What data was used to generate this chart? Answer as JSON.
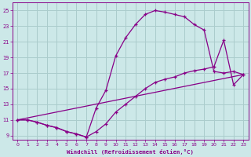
{
  "bg_color": "#cce8e8",
  "grid_color": "#aacccc",
  "line_color": "#880088",
  "xlabel": "Windchill (Refroidissement éolien,°C)",
  "xlim": [
    -0.5,
    23.5
  ],
  "ylim": [
    8.5,
    26.0
  ],
  "xticks": [
    0,
    1,
    2,
    3,
    4,
    5,
    6,
    7,
    8,
    9,
    10,
    11,
    12,
    13,
    14,
    15,
    16,
    17,
    18,
    19,
    20,
    21,
    22,
    23
  ],
  "yticks": [
    9,
    11,
    13,
    15,
    17,
    19,
    21,
    23,
    25
  ],
  "line1_x": [
    0,
    1,
    2,
    3,
    4,
    5,
    6,
    7,
    8,
    9,
    10,
    11,
    12,
    13,
    14,
    15,
    16,
    17,
    18,
    19,
    20,
    21,
    22,
    23
  ],
  "line1_y": [
    11.0,
    11.0,
    10.7,
    10.3,
    10.0,
    9.5,
    9.2,
    8.8,
    12.5,
    14.8,
    19.2,
    21.5,
    23.2,
    24.5,
    25.0,
    24.8,
    24.5,
    24.2,
    23.2,
    22.5,
    17.2,
    17.0,
    17.2,
    16.8
  ],
  "line2_x": [
    0,
    1,
    2,
    3,
    4,
    5,
    6,
    7,
    8,
    9,
    10,
    11,
    12,
    13,
    14,
    15,
    16,
    17,
    18,
    19,
    20,
    21,
    22,
    23
  ],
  "line2_y": [
    11.0,
    11.0,
    10.7,
    10.3,
    10.0,
    9.5,
    9.2,
    8.8,
    9.5,
    10.5,
    12.0,
    13.0,
    14.0,
    15.0,
    15.8,
    16.2,
    16.5,
    17.0,
    17.3,
    17.5,
    17.8,
    21.2,
    15.5,
    16.8
  ],
  "line3_x": [
    0,
    23
  ],
  "line3_y": [
    11.0,
    16.8
  ]
}
